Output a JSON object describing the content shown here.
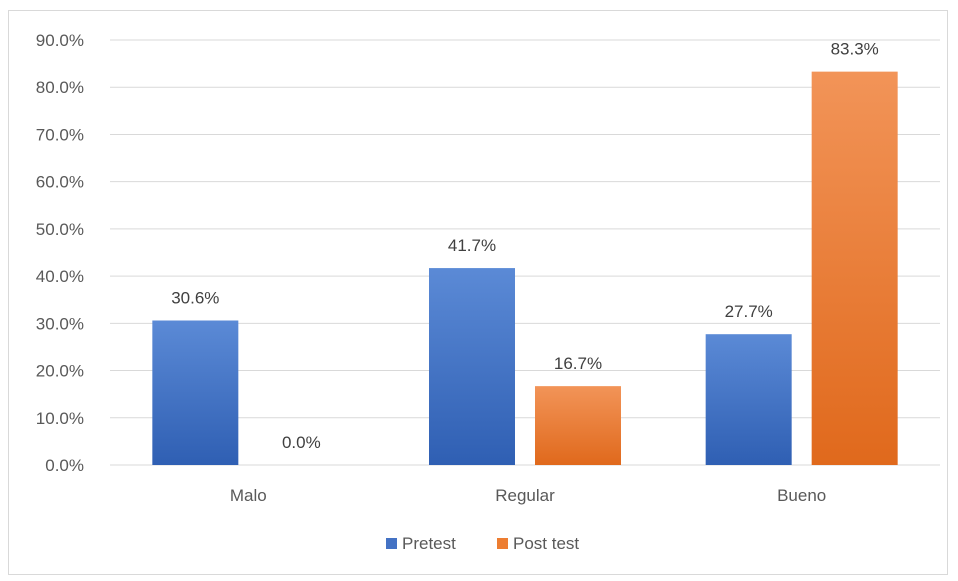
{
  "chart_data": {
    "type": "bar",
    "categories": [
      "Malo",
      "Regular",
      "Bueno"
    ],
    "series": [
      {
        "name": "Pretest",
        "values": [
          30.6,
          41.7,
          27.7
        ],
        "color": "#4472c4",
        "labels": [
          "30.6%",
          "41.7%",
          "27.7%"
        ]
      },
      {
        "name": "Post test",
        "values": [
          0.0,
          16.7,
          83.3
        ],
        "color": "#ed7d31",
        "labels": [
          "0.0%",
          "16.7%",
          "83.3%"
        ]
      }
    ],
    "yticks": [
      "0.0%",
      "10.0%",
      "20.0%",
      "30.0%",
      "40.0%",
      "50.0%",
      "60.0%",
      "70.0%",
      "80.0%",
      "90.0%"
    ],
    "ylim": [
      0,
      90
    ],
    "grid": true,
    "legend": "bottom",
    "title": "",
    "xlabel": "",
    "ylabel": ""
  }
}
